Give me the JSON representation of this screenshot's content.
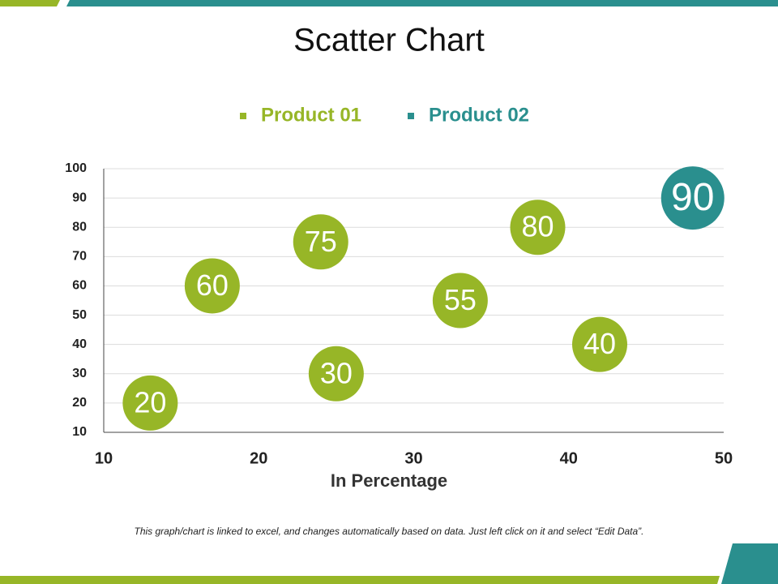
{
  "chart_data": {
    "type": "scatter",
    "title": "Scatter Chart",
    "x_label": "In Percentage",
    "series": [
      {
        "name": "Product 01",
        "color": "#97b627",
        "x": [
          13,
          17,
          24,
          25,
          33,
          38,
          42
        ],
        "values": [
          20,
          60,
          75,
          30,
          55,
          80,
          40
        ]
      },
      {
        "name": "Product 02",
        "color": "#2a8f8e",
        "x": [
          48
        ],
        "values": [
          90
        ]
      }
    ],
    "xlim": [
      10,
      50
    ],
    "xticks": [
      10,
      20,
      30,
      40,
      50
    ],
    "ylim": [
      10,
      100
    ],
    "yticks": [
      10,
      20,
      30,
      40,
      50,
      60,
      70,
      80,
      90,
      100
    ],
    "grid": true
  },
  "footnote": "This graph/chart is linked to excel, and changes automatically based on data. Just left click on it and select “Edit Data”."
}
